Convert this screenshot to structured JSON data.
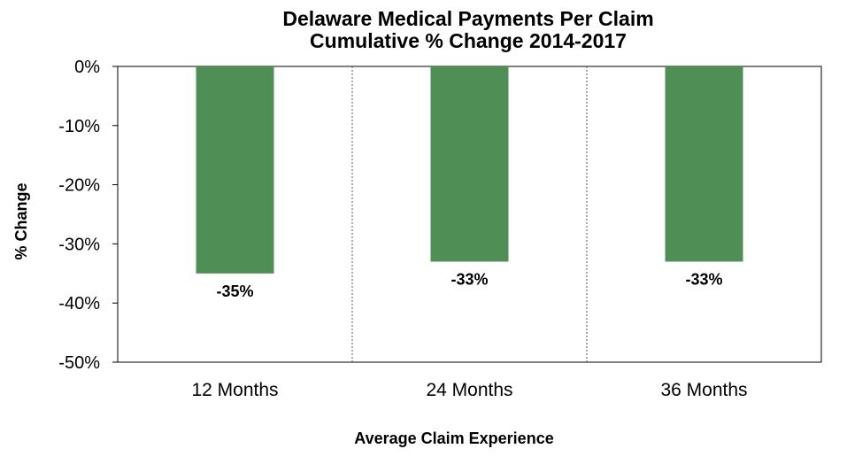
{
  "chart_data": {
    "type": "bar",
    "title": "Delaware Medical Payments Per Claim",
    "subtitle": "Cumulative % Change 2014-2017",
    "xlabel": "Average Claim Experience",
    "ylabel": "% Change",
    "categories": [
      "12 Months",
      "24 Months",
      "36 Months"
    ],
    "values": [
      -35,
      -33,
      -33
    ],
    "data_labels": [
      "-35%",
      "-33%",
      "-33%"
    ],
    "ylim": [
      -50,
      0
    ],
    "y_ticks": [
      0,
      -10,
      -20,
      -30,
      -40,
      -50
    ],
    "y_tick_labels": [
      "0%",
      "-10%",
      "-20%",
      "-30%",
      "-40%",
      "-50%"
    ],
    "bar_color": "#4f8f56",
    "category_dividers": "dotted",
    "legend": "none"
  }
}
